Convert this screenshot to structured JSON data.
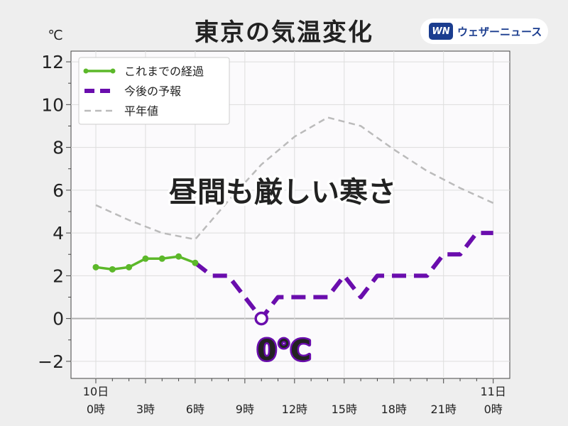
{
  "header": {
    "title": "東京の気温変化",
    "brand_logo": "WN",
    "brand_name": "ウェザーニュース"
  },
  "chart_data": {
    "type": "line",
    "title": "東京の気温変化",
    "ylabel": "℃",
    "ylim": [
      -2.8,
      12.5
    ],
    "xlim": [
      -1.5,
      25
    ],
    "yticks": [
      -2,
      0,
      2,
      4,
      6,
      8,
      10,
      12
    ],
    "ytick_labels": [
      "−2",
      "0",
      "2",
      "4",
      "6",
      "8",
      "10",
      "12"
    ],
    "xticks": [
      {
        "x": 0,
        "line1": "10日",
        "line2": "0時"
      },
      {
        "x": 3,
        "line1": "",
        "line2": "3時"
      },
      {
        "x": 6,
        "line1": "",
        "line2": "6時"
      },
      {
        "x": 9,
        "line1": "",
        "line2": "9時"
      },
      {
        "x": 12,
        "line1": "",
        "line2": "12時"
      },
      {
        "x": 15,
        "line1": "",
        "line2": "15時"
      },
      {
        "x": 18,
        "line1": "",
        "line2": "18時"
      },
      {
        "x": 21,
        "line1": "",
        "line2": "21時"
      },
      {
        "x": 24,
        "line1": "11日",
        "line2": "0時"
      }
    ],
    "grid": true,
    "legend_position": "top-left",
    "series": [
      {
        "name": "これまでの経過",
        "style": "solid-markers",
        "color": "#5cb82a",
        "x": [
          0,
          1,
          2,
          3,
          4,
          5,
          6
        ],
        "y": [
          2.4,
          2.3,
          2.4,
          2.8,
          2.8,
          2.9,
          2.6
        ]
      },
      {
        "name": "今後の予報",
        "style": "dashed-thick",
        "color": "#6a0dad",
        "x": [
          6,
          7,
          8,
          9,
          10,
          11,
          12,
          13,
          14,
          15,
          16,
          17,
          18,
          19,
          20,
          21,
          22,
          23,
          24
        ],
        "y": [
          2.6,
          2,
          2,
          1,
          0,
          1,
          1,
          1,
          1,
          2,
          1,
          2,
          2,
          2,
          2,
          3,
          3,
          4,
          4
        ]
      },
      {
        "name": "平年値",
        "style": "dashed-thin",
        "color": "#bbbbbb",
        "x": [
          0,
          2,
          4,
          6,
          8,
          10,
          12,
          14,
          16,
          18,
          20,
          22,
          24
        ],
        "y": [
          5.3,
          4.6,
          4.0,
          3.7,
          5.5,
          7.2,
          8.5,
          9.4,
          9.0,
          7.9,
          6.9,
          6.1,
          5.4
        ]
      }
    ],
    "annotations": [
      {
        "text": "昼間も厳しい寒さ",
        "kind": "headline"
      },
      {
        "text": "0℃",
        "kind": "min-callout",
        "x": 10,
        "y": 0
      }
    ]
  }
}
